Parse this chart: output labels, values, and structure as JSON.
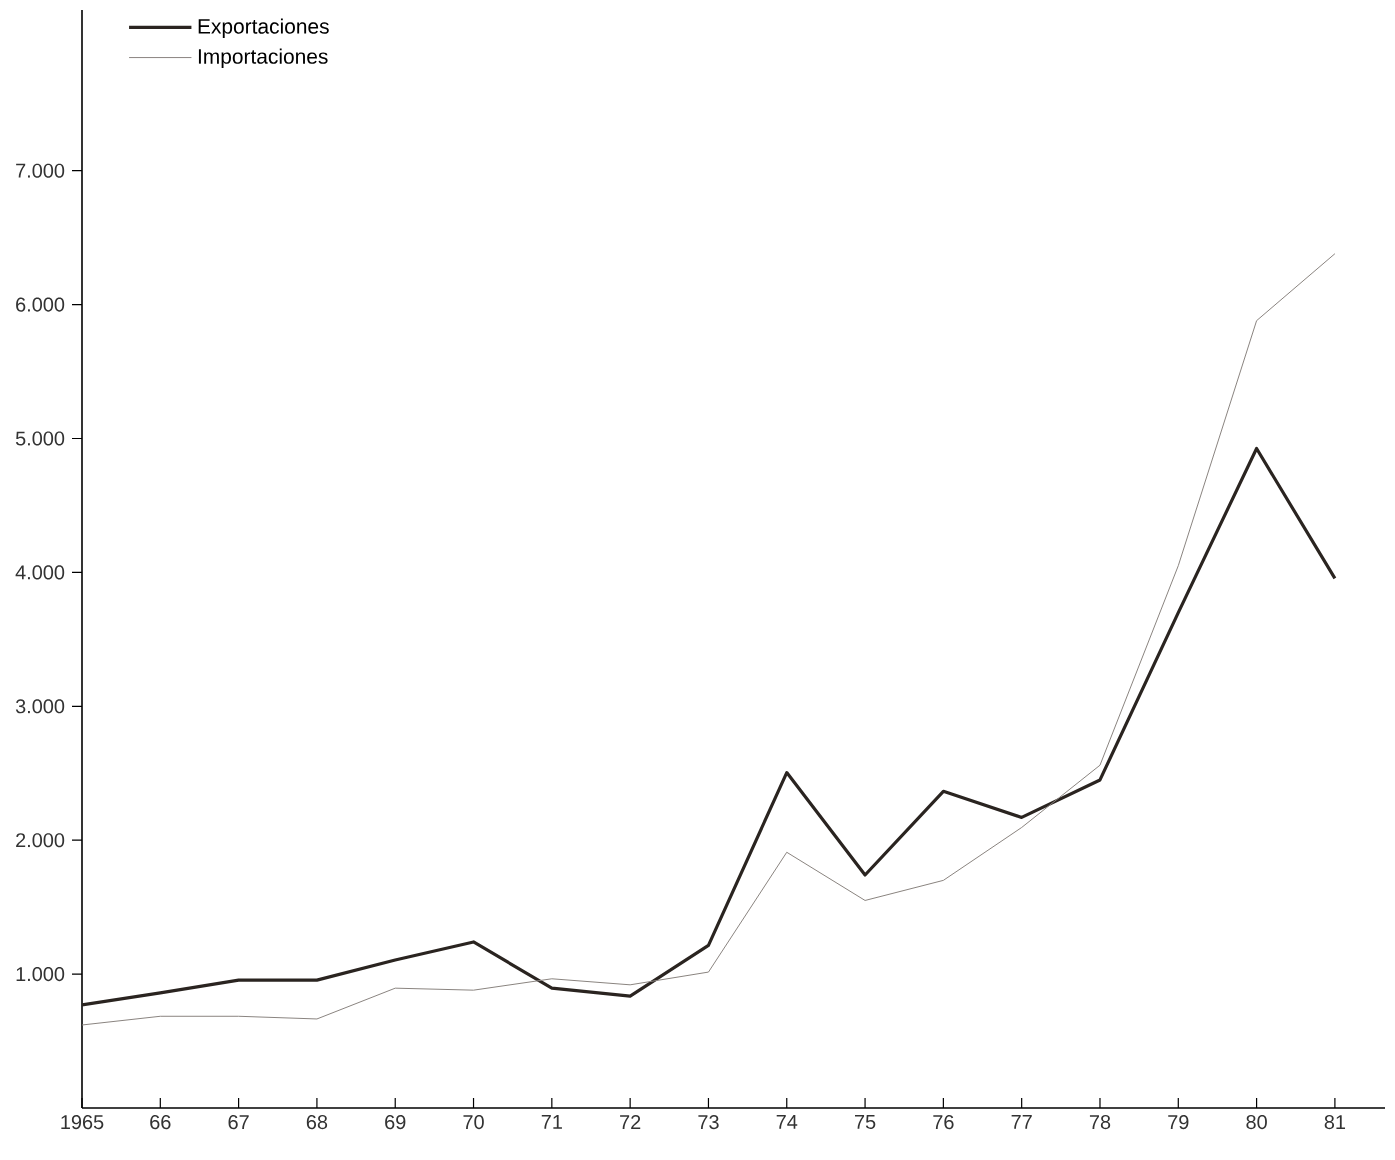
{
  "chart_data": {
    "type": "line",
    "categories": [
      "1965",
      "66",
      "67",
      "68",
      "69",
      "70",
      "71",
      "72",
      "73",
      "74",
      "75",
      "76",
      "77",
      "78",
      "79",
      "80",
      "81"
    ],
    "series": [
      {
        "name": "Exportaciones",
        "color": "#2a2420",
        "values": [
          770,
          860,
          955,
          955,
          1105,
          1240,
          895,
          835,
          1215,
          2505,
          1740,
          2365,
          2170,
          2450,
          3700,
          4925,
          3955
        ]
      },
      {
        "name": "Importaciones",
        "color": "#8a8480",
        "values": [
          620,
          685,
          685,
          665,
          895,
          880,
          965,
          920,
          1015,
          1910,
          1550,
          1700,
          2095,
          2560,
          4050,
          5880,
          6380
        ]
      }
    ],
    "ylim": [
      0,
      8200
    ],
    "yticks": [
      {
        "value": 1000,
        "label": "1.000"
      },
      {
        "value": 2000,
        "label": "2.000"
      },
      {
        "value": 3000,
        "label": "3.000"
      },
      {
        "value": 4000,
        "label": "4.000"
      },
      {
        "value": 5000,
        "label": "5.000"
      },
      {
        "value": 6000,
        "label": "6.000"
      },
      {
        "value": 7000,
        "label": "7.000"
      }
    ],
    "legend": "top left",
    "grid": false,
    "marker": "none",
    "line_style": "solid"
  }
}
